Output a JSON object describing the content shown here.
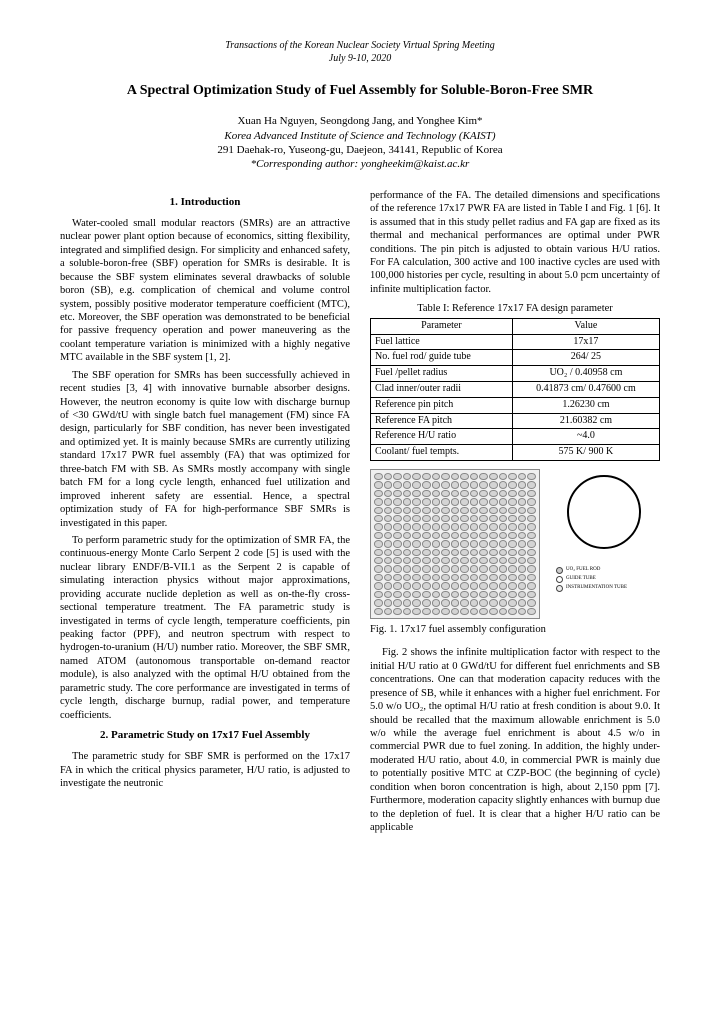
{
  "meta": {
    "line1": "Transactions of the Korean Nuclear Society Virtual Spring Meeting",
    "line2": "July 9-10, 2020"
  },
  "title": "A Spectral Optimization Study of Fuel Assembly for Soluble-Boron-Free SMR",
  "authors": "Xuan Ha Nguyen, Seongdong Jang, and Yonghee Kim*",
  "affiliation": "Korea Advanced Institute of Science and Technology (KAIST)",
  "address": "291 Daehak-ro, Yuseong-gu, Daejeon, 34141, Republic of Korea",
  "corresponding": "*Corresponding author: yongheekim@kaist.ac.kr",
  "sec1_h": "1. Introduction",
  "p1": "Water-cooled small modular reactors (SMRs) are an attractive nuclear power plant option because of economics, sitting flexibility, integrated and simplified design. For simplicity and enhanced safety, a soluble-boron-free (SBF) operation for SMRs is desirable. It is because the SBF system eliminates several drawbacks of soluble boron (SB), e.g. complication of chemical and volume control system, possibly positive moderator temperature coefficient (MTC), etc. Moreover, the SBF operation was demonstrated to be beneficial for passive frequency operation and power maneuvering as the coolant temperature variation is minimized with a highly negative MTC available in the SBF system [1, 2].",
  "p2": "The SBF operation for SMRs has been successfully achieved in recent studies [3, 4] with innovative burnable absorber designs. However, the neutron economy is quite low with discharge burnup of <30 GWd/tU with single batch fuel management (FM) since FA design, particularly for SBF condition, has never been investigated and optimized yet. It is mainly because SMRs are currently utilizing standard 17x17 PWR fuel assembly (FA) that was optimized for three-batch FM with SB. As SMRs mostly accompany with single batch FM for a long cycle length, enhanced fuel utilization and improved inherent safety are essential. Hence, a spectral optimization study of FA for high-performance SBF SMRs is investigated in this paper.",
  "p3": "To perform parametric study for the optimization of SMR FA, the continuous-energy Monte Carlo Serpent 2 code [5] is used with the nuclear library ENDF/B-VII.1 as the Serpent 2 is capable of simulating interaction physics without major approximations, providing accurate nuclide depletion as well as on-the-fly cross-sectional temperature treatment. The FA parametric study is investigated in terms of cycle length, temperature coefficients, pin peaking factor (PPF), and neutron spectrum with respect to hydrogen-to-uranium (H/U) number ratio. Moreover, the SBF SMR, named ATOM (autonomous transportable on-demand reactor module), is also analyzed with the optimal H/U obtained from the parametric study. The core performance are investigated in terms of cycle length, discharge burnup, radial power, and temperature coefficients.",
  "sec2_h": "2. Parametric Study on 17x17 Fuel Assembly",
  "p4": "The parametric study for SBF SMR is performed on the 17x17 FA in which the critical physics parameter, H/U ratio, is adjusted to investigate the neutronic",
  "p5": "performance of the FA. The detailed dimensions and specifications of the reference 17x17 PWR FA are listed in Table I and Fig. 1 [6]. It is assumed that in this study pellet radius and FA gap are fixed as its thermal and mechanical performances are optimal under PWR conditions. The pin pitch is adjusted to obtain various H/U ratios. For FA calculation, 300 active and 100 inactive cycles are used with 100,000 histories per cycle, resulting in about 5.0 pcm uncertainty of infinite multiplication factor.",
  "table_caption": "Table I: Reference 17x17 FA design parameter",
  "table": {
    "rows": [
      [
        "Parameter",
        "Value"
      ],
      [
        "Fuel lattice",
        "17x17"
      ],
      [
        "No. fuel rod/ guide tube",
        "264/ 25"
      ],
      [
        "Fuel /pellet radius",
        "UO₂ / 0.40958 cm"
      ],
      [
        "Clad inner/outer radii",
        "0.41873 cm/ 0.47600 cm"
      ],
      [
        "Reference pin pitch",
        "1.26230 cm"
      ],
      [
        "Reference FA pitch",
        "21.60382 cm"
      ],
      [
        "Reference H/U ratio",
        "~4.0"
      ],
      [
        "Coolant/ fuel tempts.",
        "575 K/ 900 K"
      ]
    ]
  },
  "fig1_caption": "Fig. 1. 17x17 fuel assembly configuration",
  "legend": {
    "l1": "UO₂ FUEL ROD",
    "l2": "GUIDE TUBE",
    "l3": "INSTRUMENTATION TUBE"
  },
  "p6": "Fig. 2 shows the infinite multiplication factor with respect to the initial H/U ratio at 0 GWd/tU for different fuel enrichments and SB concentrations. One can that moderation capacity reduces with the presence of SB, while it enhances with a higher fuel enrichment. For 5.0 w/o UO₂, the optimal H/U ratio at fresh condition is about 9.0. It should be recalled that the maximum allowable enrichment is 5.0 w/o while the average fuel enrichment is about 4.5 w/o in commercial PWR due to fuel zoning. In addition, the highly under-moderated H/U ratio, about 4.0, in commercial PWR is mainly due to potentially positive MTC at CZP-BOC (the beginning of cycle) condition when boron concentration is high, about 2,150 ppm [7]. Furthermore, moderation capacity slightly enhances with burnup due to the depletion of fuel. It is clear that a higher H/U ratio can be applicable"
}
